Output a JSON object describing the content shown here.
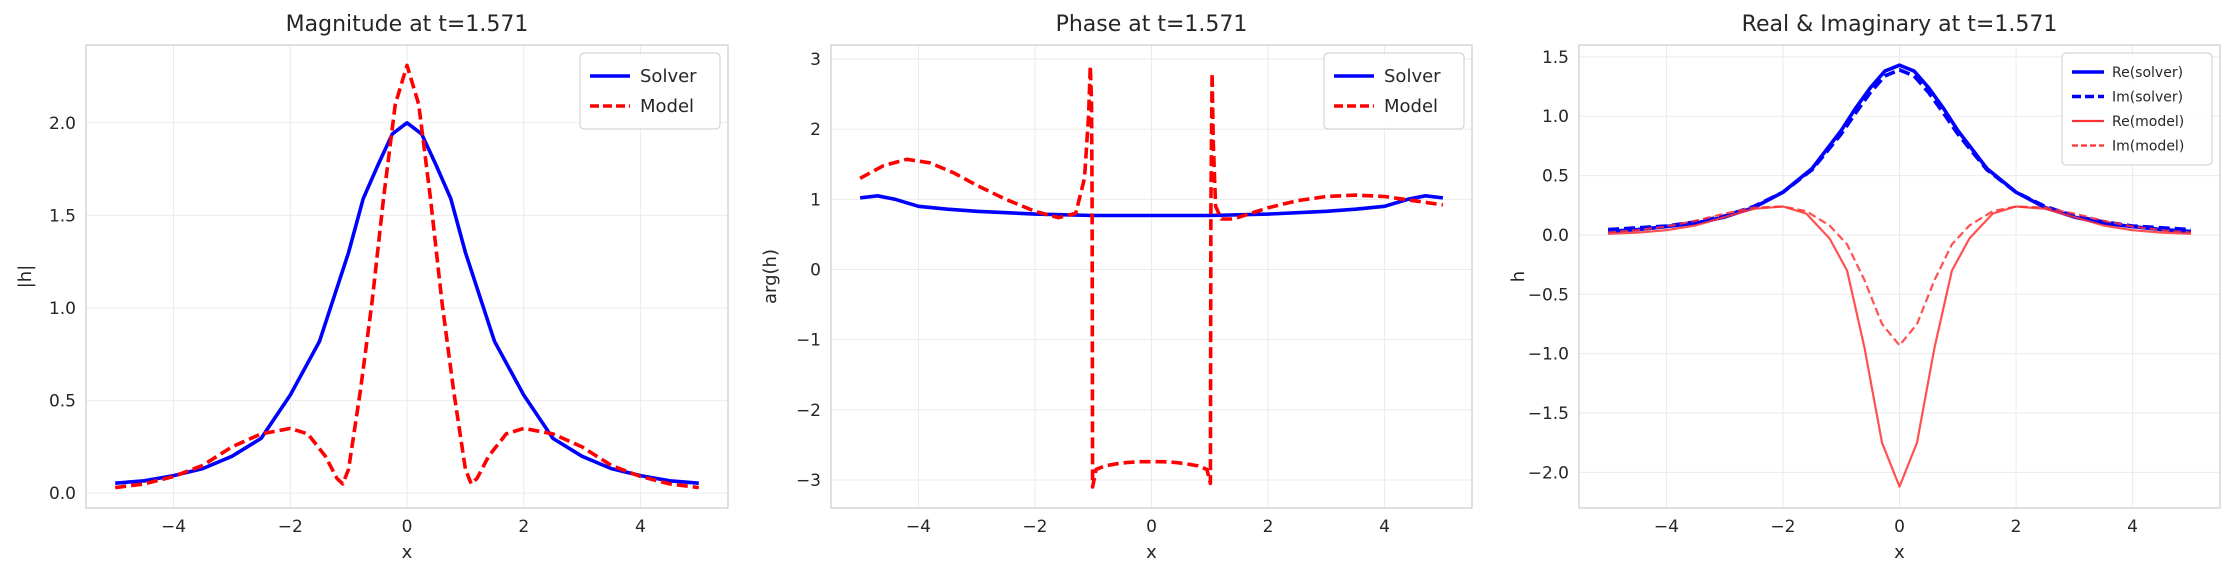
{
  "chart_data": [
    {
      "type": "line",
      "title": "Magnitude at t=1.571",
      "xlabel": "x",
      "ylabel": "|h|",
      "xlim": [
        -5.5,
        5.5
      ],
      "ylim": [
        -0.08,
        2.42
      ],
      "xticks": [
        -4,
        -2,
        0,
        2,
        4
      ],
      "xtick_labels": [
        "−4",
        "−2",
        "0",
        "2",
        "4"
      ],
      "yticks": [
        0.0,
        0.5,
        1.0,
        1.5,
        2.0
      ],
      "ytick_labels": [
        "0.0",
        "0.5",
        "1.0",
        "1.5",
        "2.0"
      ],
      "grid": true,
      "legend_position": "top-right",
      "series": [
        {
          "name": "Solver",
          "color": "#0000ff",
          "style": "solid",
          "x": [
            -5,
            -4.5,
            -4,
            -3.5,
            -3,
            -2.5,
            -2,
            -1.5,
            -1,
            -0.75,
            -0.5,
            -0.25,
            0,
            0.25,
            0.5,
            0.75,
            1,
            1.5,
            2,
            2.5,
            3,
            3.5,
            4,
            4.5,
            5
          ],
          "y": [
            0.054,
            0.067,
            0.095,
            0.133,
            0.199,
            0.296,
            0.53,
            0.82,
            1.3,
            1.59,
            1.77,
            1.94,
            2.0,
            1.94,
            1.77,
            1.59,
            1.3,
            0.82,
            0.53,
            0.296,
            0.199,
            0.133,
            0.095,
            0.067,
            0.054
          ]
        },
        {
          "name": "Model",
          "color": "#ff0000",
          "style": "dashed",
          "x": [
            -5,
            -4.5,
            -4,
            -3.5,
            -3,
            -2.5,
            -2,
            -1.7,
            -1.4,
            -1.2,
            -1.1,
            -1.0,
            -0.8,
            -0.6,
            -0.4,
            -0.2,
            0,
            0.2,
            0.4,
            0.6,
            0.8,
            1.0,
            1.1,
            1.2,
            1.4,
            1.7,
            2,
            2.5,
            3,
            3.5,
            4,
            4.5,
            5
          ],
          "y": [
            0.03,
            0.05,
            0.09,
            0.15,
            0.25,
            0.32,
            0.35,
            0.32,
            0.2,
            0.08,
            0.05,
            0.13,
            0.55,
            1.03,
            1.6,
            2.1,
            2.31,
            2.1,
            1.6,
            1.03,
            0.55,
            0.13,
            0.05,
            0.08,
            0.2,
            0.32,
            0.35,
            0.32,
            0.25,
            0.15,
            0.09,
            0.05,
            0.03
          ]
        }
      ]
    },
    {
      "type": "line",
      "title": "Phase at t=1.571",
      "xlabel": "x",
      "ylabel": "arg(h)",
      "xlim": [
        -5.5,
        5.5
      ],
      "ylim": [
        -3.4,
        3.2
      ],
      "xticks": [
        -4,
        -2,
        0,
        2,
        4
      ],
      "xtick_labels": [
        "−4",
        "−2",
        "0",
        "2",
        "4"
      ],
      "yticks": [
        -3,
        -2,
        -1,
        0,
        1,
        2,
        3
      ],
      "ytick_labels": [
        "−3",
        "−2",
        "−1",
        "0",
        "1",
        "2",
        "3"
      ],
      "grid": true,
      "legend_position": "top-right",
      "series": [
        {
          "name": "Solver",
          "color": "#0000ff",
          "style": "solid",
          "x": [
            -5,
            -4.7,
            -4.4,
            -4,
            -3.5,
            -3,
            -2,
            -1,
            0,
            1,
            2,
            3,
            3.5,
            4,
            4.4,
            4.7,
            5
          ],
          "y": [
            1.02,
            1.05,
            1.0,
            0.9,
            0.86,
            0.83,
            0.79,
            0.77,
            0.77,
            0.77,
            0.79,
            0.83,
            0.86,
            0.9,
            1.0,
            1.05,
            1.02
          ]
        },
        {
          "name": "Model",
          "color": "#ff0000",
          "style": "dashed",
          "x": [
            -5,
            -4.6,
            -4.2,
            -3.8,
            -3.4,
            -3,
            -2.5,
            -2,
            -1.6,
            -1.3,
            -1.15,
            -1.08,
            -1.05,
            -1.03,
            -1.02,
            -1.01,
            -0.95,
            -0.8,
            -0.6,
            -0.4,
            -0.2,
            0,
            0.2,
            0.4,
            0.6,
            0.8,
            0.95,
            1.01,
            1.02,
            1.04,
            1.06,
            1.1,
            1.2,
            1.4,
            1.7,
            2,
            2.5,
            3,
            3.5,
            4,
            4.5,
            5
          ],
          "y": [
            1.3,
            1.48,
            1.57,
            1.52,
            1.38,
            1.2,
            1.0,
            0.83,
            0.74,
            0.8,
            1.3,
            2.2,
            2.9,
            2.4,
            1.0,
            -3.1,
            -2.85,
            -2.8,
            -2.77,
            -2.75,
            -2.74,
            -2.74,
            -2.74,
            -2.75,
            -2.77,
            -2.8,
            -2.85,
            -3.05,
            0.9,
            2.8,
            1.8,
            0.9,
            0.72,
            0.72,
            0.8,
            0.88,
            0.98,
            1.04,
            1.06,
            1.04,
            0.98,
            0.92
          ]
        }
      ]
    },
    {
      "type": "line",
      "title": "Real & Imaginary at t=1.571",
      "xlabel": "x",
      "ylabel": "h",
      "xlim": [
        -5.5,
        5.5
      ],
      "ylim": [
        -2.3,
        1.6
      ],
      "xticks": [
        -4,
        -2,
        0,
        2,
        4
      ],
      "xtick_labels": [
        "−4",
        "−2",
        "0",
        "2",
        "4"
      ],
      "yticks": [
        -2.0,
        -1.5,
        -1.0,
        -0.5,
        0.0,
        0.5,
        1.0,
        1.5
      ],
      "ytick_labels": [
        "−2.0",
        "−1.5",
        "−1.0",
        "−0.5",
        "0.0",
        "0.5",
        "1.0",
        "1.5"
      ],
      "grid": true,
      "legend_position": "top-right",
      "series": [
        {
          "name": "Re(solver)",
          "color": "#0000ff",
          "style": "solid",
          "width": "thick",
          "x": [
            -5,
            -4.5,
            -4,
            -3.5,
            -3,
            -2.5,
            -2,
            -1.5,
            -1,
            -0.75,
            -0.5,
            -0.25,
            0,
            0.25,
            0.5,
            0.75,
            1,
            1.5,
            2,
            2.5,
            3,
            3.5,
            4,
            4.5,
            5
          ],
          "y": [
            0.03,
            0.045,
            0.07,
            0.1,
            0.15,
            0.23,
            0.36,
            0.56,
            0.88,
            1.07,
            1.24,
            1.38,
            1.43,
            1.38,
            1.24,
            1.07,
            0.88,
            0.56,
            0.36,
            0.23,
            0.15,
            0.1,
            0.07,
            0.045,
            0.03
          ]
        },
        {
          "name": "Im(solver)",
          "color": "#0000ff",
          "style": "dashed",
          "width": "thick",
          "x": [
            -5,
            -4.5,
            -4,
            -3.5,
            -3,
            -2.5,
            -2,
            -1.5,
            -1,
            -0.75,
            -0.5,
            -0.25,
            0,
            0.25,
            0.5,
            0.75,
            1,
            1.5,
            2,
            2.5,
            3,
            3.5,
            4,
            4.5,
            5
          ],
          "y": [
            0.045,
            0.06,
            0.075,
            0.11,
            0.16,
            0.24,
            0.36,
            0.55,
            0.85,
            1.03,
            1.2,
            1.34,
            1.39,
            1.34,
            1.2,
            1.03,
            0.85,
            0.55,
            0.36,
            0.24,
            0.16,
            0.11,
            0.075,
            0.06,
            0.045
          ]
        },
        {
          "name": "Re(model)",
          "color": "#ff3333",
          "style": "solid",
          "width": "thin",
          "x": [
            -5,
            -4.5,
            -4,
            -3.5,
            -3,
            -2.5,
            -2,
            -1.6,
            -1.2,
            -0.9,
            -0.6,
            -0.3,
            0,
            0.3,
            0.6,
            0.9,
            1.2,
            1.6,
            2,
            2.5,
            3,
            3.5,
            4,
            4.5,
            5
          ],
          "y": [
            0.01,
            0.02,
            0.04,
            0.08,
            0.15,
            0.22,
            0.24,
            0.18,
            -0.03,
            -0.3,
            -0.95,
            -1.75,
            -2.12,
            -1.75,
            -0.95,
            -0.3,
            -0.03,
            0.18,
            0.24,
            0.22,
            0.15,
            0.08,
            0.04,
            0.02,
            0.01
          ]
        },
        {
          "name": "Im(model)",
          "color": "#ff3333",
          "style": "dashed",
          "width": "thin",
          "x": [
            -5,
            -4.5,
            -4,
            -3.5,
            -3,
            -2.5,
            -2,
            -1.6,
            -1.2,
            -0.9,
            -0.6,
            -0.3,
            0,
            0.3,
            0.6,
            0.9,
            1.2,
            1.6,
            2,
            2.5,
            3,
            3.5,
            4,
            4.5,
            5
          ],
          "y": [
            0.02,
            0.04,
            0.07,
            0.12,
            0.18,
            0.23,
            0.24,
            0.2,
            0.08,
            -0.08,
            -0.38,
            -0.75,
            -0.93,
            -0.75,
            -0.38,
            -0.08,
            0.08,
            0.2,
            0.24,
            0.23,
            0.18,
            0.12,
            0.07,
            0.04,
            0.02
          ]
        }
      ]
    }
  ]
}
